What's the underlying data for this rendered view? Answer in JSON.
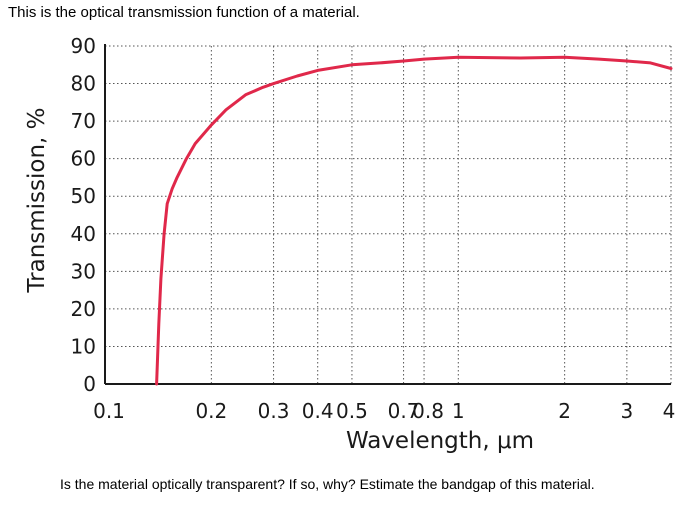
{
  "intro_text": "This is the optical transmission function of a material.",
  "question_text": "Is the material optically transparent?  If so, why?  Estimate the bandgap of this material.",
  "chart_data": {
    "type": "line",
    "title": "",
    "xlabel": "Wavelength, μm",
    "ylabel": "Transmission, %",
    "x_scale": "log",
    "xlim": [
      0.1,
      4
    ],
    "ylim": [
      0,
      90
    ],
    "grid": true,
    "x_ticks": [
      0.1,
      0.2,
      0.3,
      0.4,
      0.5,
      0.7,
      0.8,
      1,
      2,
      3,
      4
    ],
    "x_tick_labels": [
      "0.1",
      "0.2",
      "0.3",
      "0.4",
      "0.5",
      "0.7",
      "0.8",
      "1",
      "2",
      "3",
      "4"
    ],
    "y_ticks": [
      0,
      10,
      20,
      30,
      40,
      50,
      60,
      70,
      80,
      90
    ],
    "y_tick_labels": [
      "0",
      "10",
      "20",
      "30",
      "40",
      "50",
      "60",
      "70",
      "80",
      "90"
    ],
    "series": [
      {
        "color": "#e0284a",
        "x": [
          0.14,
          0.141,
          0.142,
          0.144,
          0.147,
          0.15,
          0.155,
          0.16,
          0.17,
          0.18,
          0.2,
          0.22,
          0.25,
          0.28,
          0.3,
          0.35,
          0.4,
          0.5,
          0.6,
          0.7,
          0.8,
          1.0,
          1.5,
          2.0,
          2.5,
          3.0,
          3.5,
          4.0
        ],
        "y": [
          0,
          8,
          16,
          28,
          40,
          48,
          52,
          55,
          60,
          64,
          69,
          73,
          77,
          79,
          80,
          82,
          83.5,
          85,
          85.5,
          86,
          86.5,
          87,
          86.8,
          87,
          86.5,
          86,
          85.5,
          84
        ]
      }
    ]
  }
}
